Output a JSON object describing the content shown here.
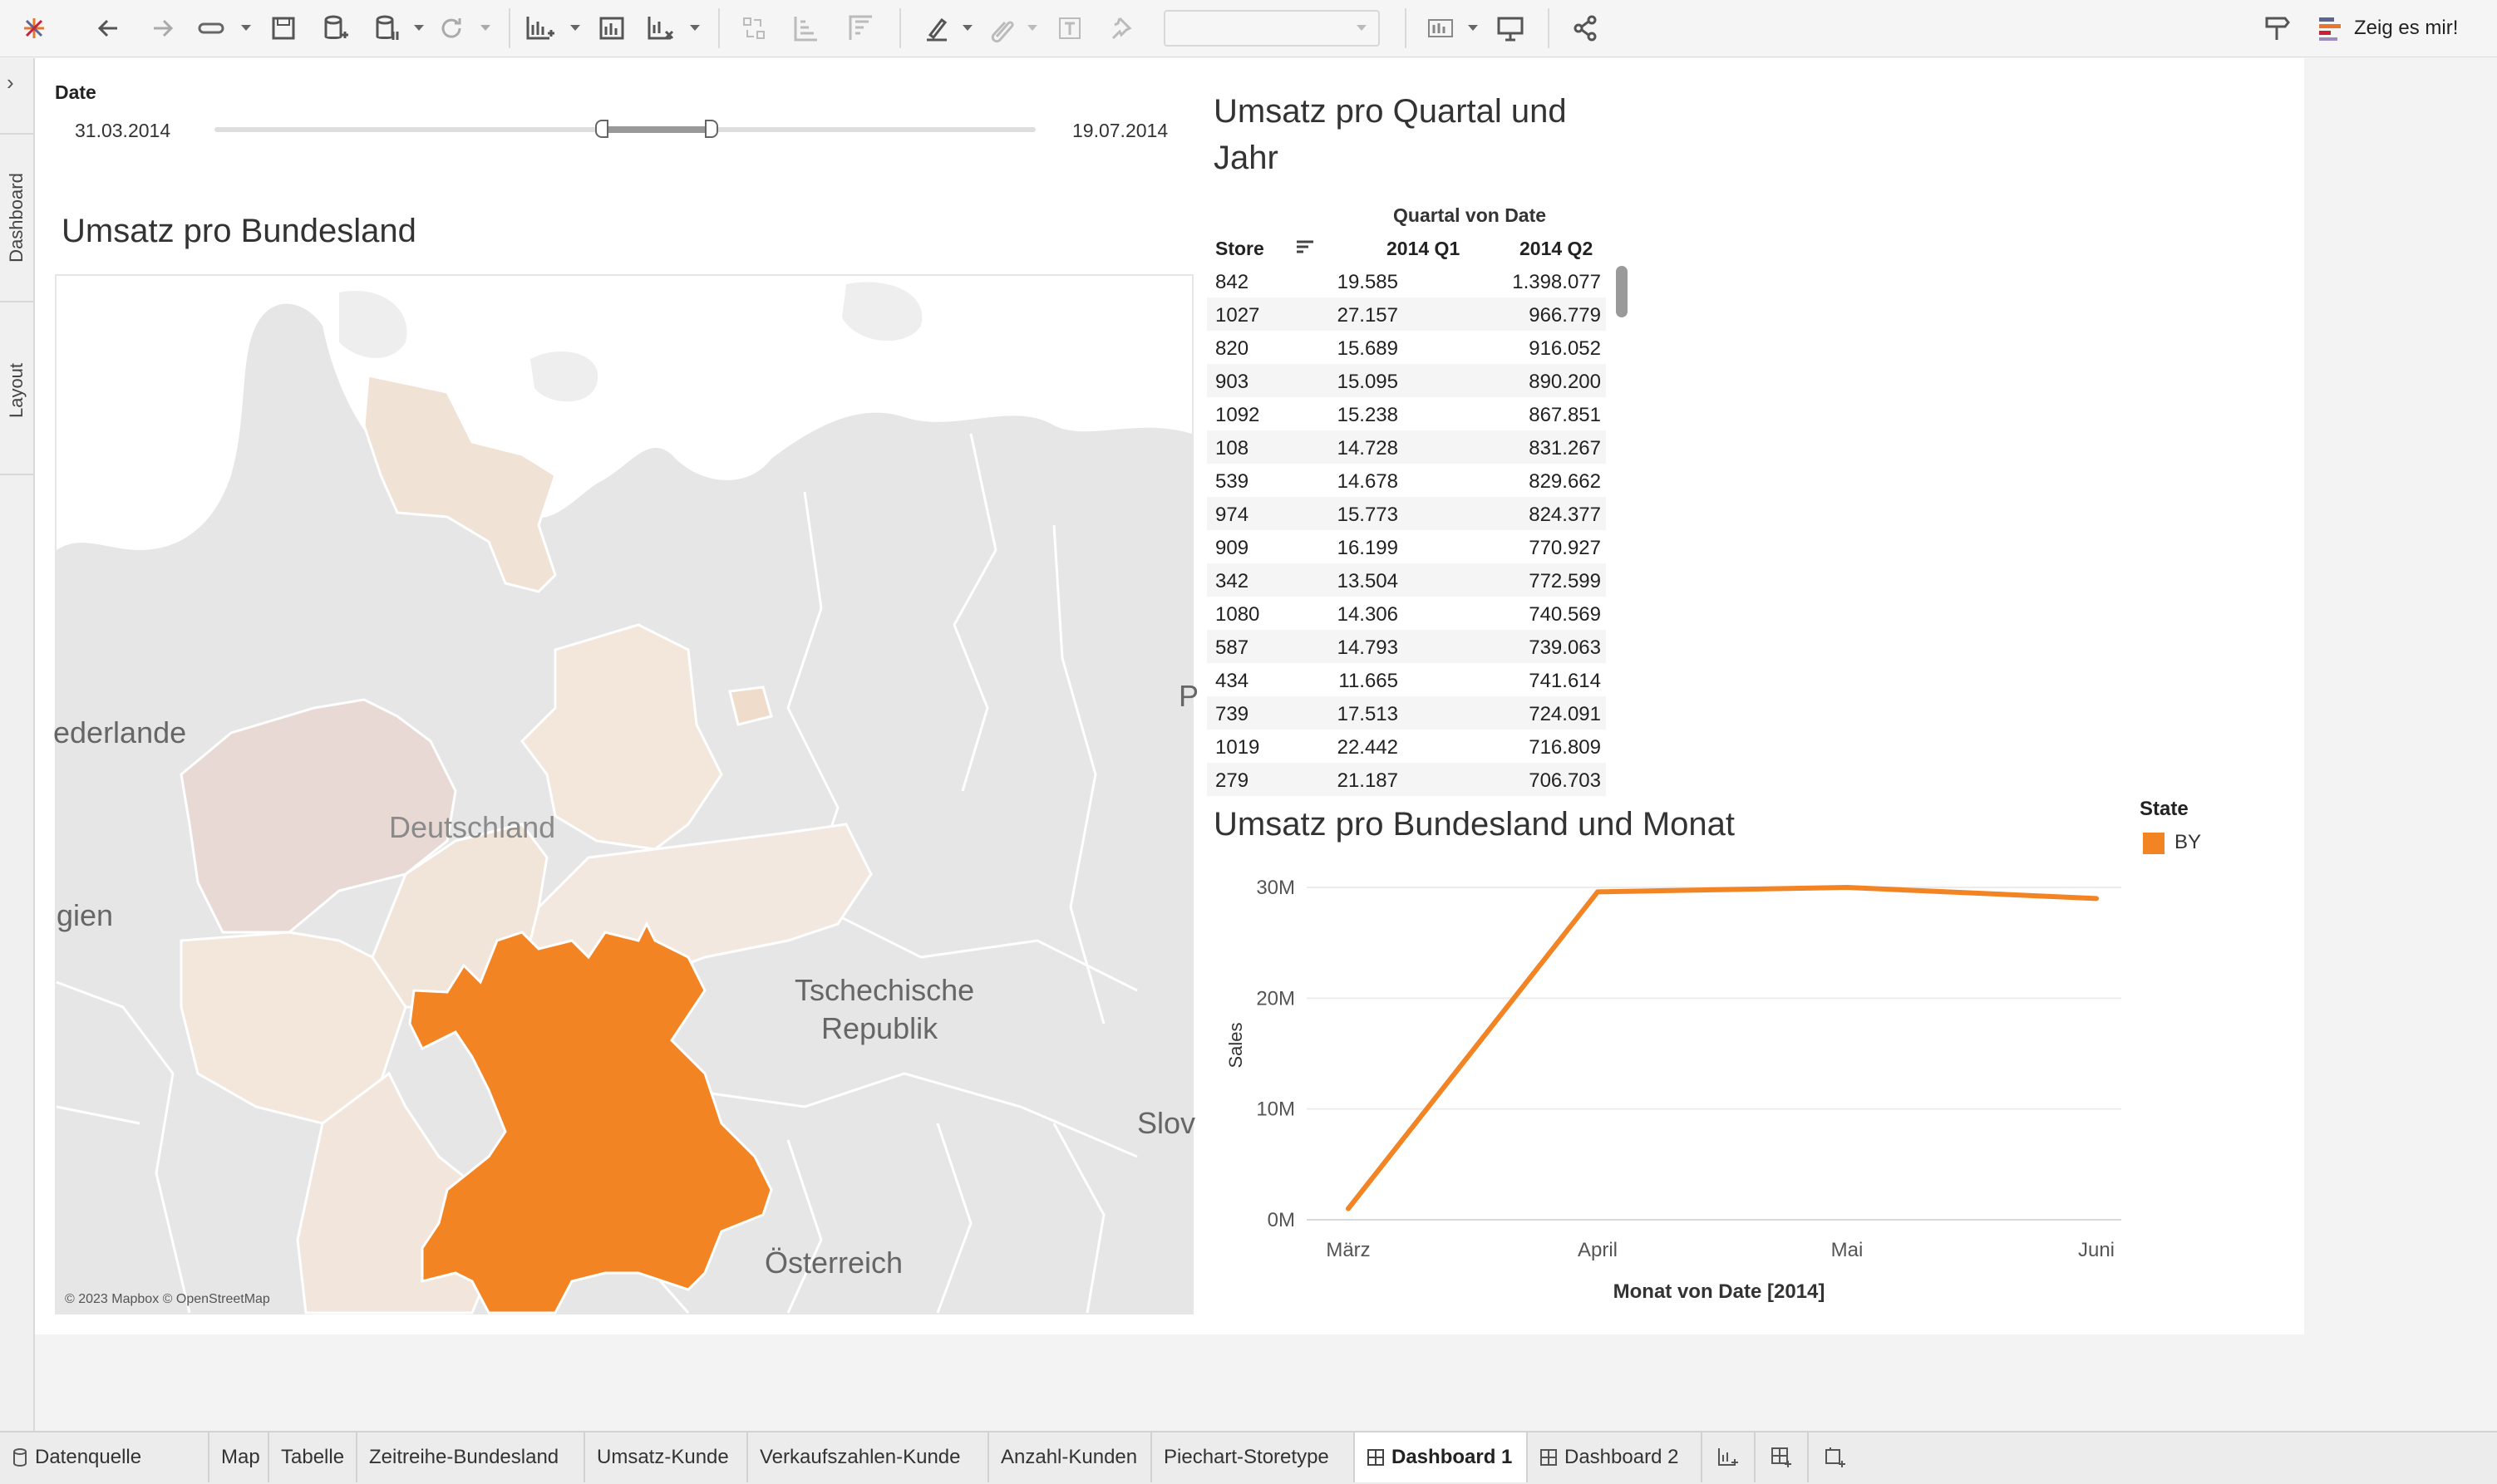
{
  "toolbar": {
    "show_me_label": "Zeig es mir!"
  },
  "leftbar": {
    "tabs": [
      "Dashboard",
      "Layout"
    ]
  },
  "date_filter": {
    "label": "Date",
    "start": "31.03.2014",
    "end": "19.07.2014"
  },
  "map_view": {
    "title": "Umsatz pro Bundesland",
    "labels": {
      "nl": "ederlande",
      "de": "Deutschland",
      "be": "gien",
      "cz_line1": "Tschechische",
      "cz_line2": "Republik",
      "at": "Österreich",
      "sk": "Slov",
      "pl": "P"
    },
    "attribution": "© 2023 Mapbox © OpenStreetMap",
    "highlight_color": "#f28424"
  },
  "table_view": {
    "title_line1": "Umsatz pro Quartal und",
    "title_line2": "Jahr",
    "column_group": "Quartal von Date",
    "headers": [
      "Store",
      "2014 Q1",
      "2014 Q2"
    ],
    "rows": [
      [
        "842",
        "19.585",
        "1.398.077"
      ],
      [
        "1027",
        "27.157",
        "966.779"
      ],
      [
        "820",
        "15.689",
        "916.052"
      ],
      [
        "903",
        "15.095",
        "890.200"
      ],
      [
        "1092",
        "15.238",
        "867.851"
      ],
      [
        "108",
        "14.728",
        "831.267"
      ],
      [
        "539",
        "14.678",
        "829.662"
      ],
      [
        "974",
        "15.773",
        "824.377"
      ],
      [
        "909",
        "16.199",
        "770.927"
      ],
      [
        "342",
        "13.504",
        "772.599"
      ],
      [
        "1080",
        "14.306",
        "740.569"
      ],
      [
        "587",
        "14.793",
        "739.063"
      ],
      [
        "434",
        "11.665",
        "741.614"
      ],
      [
        "739",
        "17.513",
        "724.091"
      ],
      [
        "1019",
        "22.442",
        "716.809"
      ],
      [
        "279",
        "21.187",
        "706.703"
      ]
    ]
  },
  "line_view": {
    "title": "Umsatz pro Bundesland und Monat",
    "legend_title": "State",
    "legend_item": "BY"
  },
  "chart_data": {
    "type": "line",
    "title": "Umsatz pro Bundesland und Monat",
    "xlabel": "Monat von Date [2014]",
    "ylabel": "Sales",
    "categories": [
      "März",
      "April",
      "Mai",
      "Juni"
    ],
    "series": [
      {
        "name": "BY",
        "values": [
          1000000,
          29600000,
          30000000,
          29000000
        ],
        "color": "#f28424"
      }
    ],
    "ylim": [
      0,
      30000000
    ],
    "yticks": [
      0,
      10000000,
      20000000,
      30000000
    ],
    "ytick_labels": [
      "0M",
      "10M",
      "20M",
      "30M"
    ],
    "grid": true,
    "legend": "top-right"
  },
  "bottom_tabs": {
    "items": [
      "Datenquelle",
      "Map",
      "Tabelle",
      "Zeitreihe-Bundesland",
      "Umsatz-Kunde",
      "Verkaufszahlen-Kunde",
      "Anzahl-Kunden",
      "Piechart-Storetype",
      "Dashboard 1",
      "Dashboard 2"
    ],
    "active": "Dashboard 1"
  }
}
